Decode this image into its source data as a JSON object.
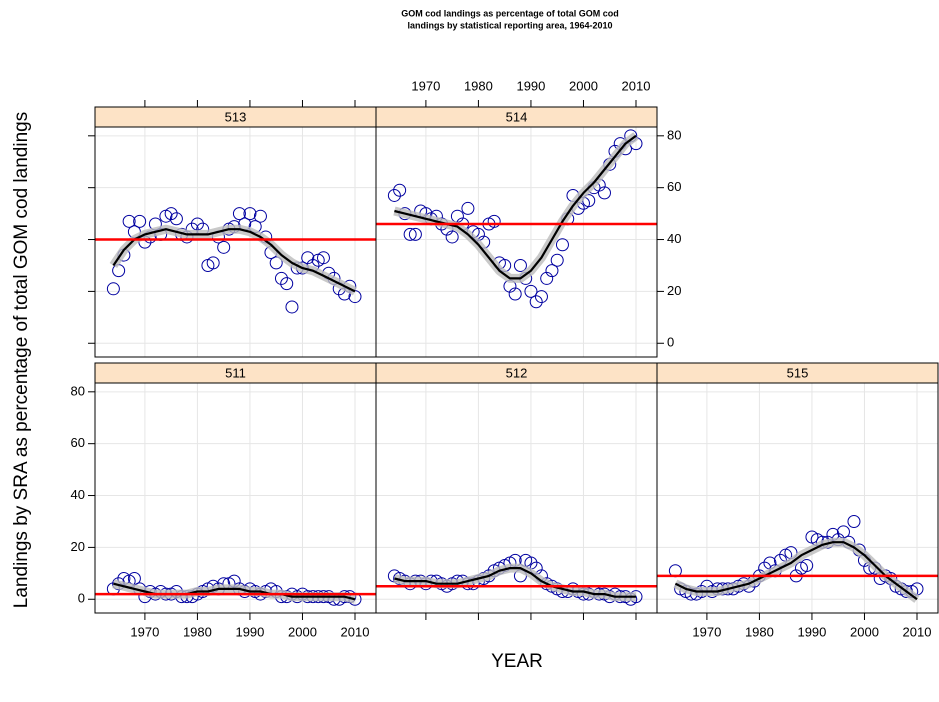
{
  "chart_data": {
    "type": "scatter",
    "title_lines": [
      "GOM cod landings as percentage of total GOM cod",
      "landings by statistical reporting area, 1964-2010"
    ],
    "ylabel": "Landings by SRA as percentage of total GOM cod landings",
    "xlabel": "YEAR",
    "xlim": [
      1960.5,
      2014
    ],
    "ylim": [
      -5.3,
      83.4
    ],
    "xticks": [
      1970,
      1980,
      1990,
      2000,
      2010
    ],
    "yticks": [
      0,
      20,
      40,
      60,
      80
    ],
    "grid": true,
    "point_color": "#0000a0",
    "smooth_color": "#000000",
    "mean_color": "#ff0000",
    "strip_color": "#fde3c6",
    "x": [
      1964,
      1965,
      1966,
      1967,
      1968,
      1969,
      1970,
      1971,
      1972,
      1973,
      1974,
      1975,
      1976,
      1977,
      1978,
      1979,
      1980,
      1981,
      1982,
      1983,
      1984,
      1985,
      1986,
      1987,
      1988,
      1989,
      1990,
      1991,
      1992,
      1993,
      1994,
      1995,
      1996,
      1997,
      1998,
      1999,
      2000,
      2001,
      2002,
      2003,
      2004,
      2005,
      2006,
      2007,
      2008,
      2009,
      2010
    ],
    "smooth_x": [
      1964,
      1966,
      1968,
      1970,
      1972,
      1974,
      1976,
      1978,
      1980,
      1982,
      1984,
      1986,
      1988,
      1990,
      1992,
      1994,
      1996,
      1998,
      2000,
      2002,
      2004,
      2006,
      2008,
      2010
    ],
    "panels": [
      {
        "name": "511",
        "mean": 2,
        "values": [
          4,
          6,
          8,
          7,
          8,
          4,
          1,
          3,
          2,
          3,
          2,
          2,
          3,
          1,
          1,
          1,
          2,
          3,
          4,
          5,
          4,
          6,
          6,
          7,
          4,
          3,
          4,
          3,
          2,
          3,
          4,
          3,
          1,
          1,
          2,
          1,
          2,
          1,
          1,
          1,
          1,
          1,
          0,
          0,
          1,
          1,
          0
        ],
        "smooth": [
          6,
          5,
          4,
          3,
          2,
          2,
          2,
          2,
          3,
          3,
          4,
          4,
          4,
          3,
          3,
          2,
          2,
          1,
          1,
          1,
          1,
          1,
          1,
          0
        ]
      },
      {
        "name": "512",
        "mean": 5,
        "values": [
          9,
          8,
          7,
          6,
          7,
          7,
          6,
          7,
          7,
          6,
          5,
          6,
          7,
          7,
          6,
          6,
          7,
          8,
          9,
          11,
          12,
          13,
          14,
          15,
          9,
          15,
          14,
          12,
          9,
          6,
          5,
          4,
          3,
          3,
          4,
          3,
          2,
          2,
          3,
          2,
          2,
          1,
          2,
          1,
          1,
          0,
          1
        ],
        "smooth": [
          8,
          7,
          7,
          7,
          6,
          6,
          6,
          7,
          8,
          9,
          11,
          12,
          12,
          10,
          7,
          5,
          4,
          3,
          3,
          2,
          2,
          1,
          1,
          1
        ]
      },
      {
        "name": "515",
        "mean": 9,
        "values": [
          11,
          4,
          3,
          2,
          2,
          3,
          5,
          3,
          4,
          4,
          4,
          4,
          5,
          6,
          5,
          7,
          9,
          12,
          14,
          11,
          15,
          17,
          18,
          9,
          12,
          13,
          24,
          23,
          22,
          22,
          25,
          23,
          26,
          22,
          30,
          19,
          15,
          12,
          12,
          8,
          9,
          8,
          5,
          4,
          3,
          3,
          4
        ],
        "smooth": [
          6,
          4,
          3,
          3,
          3,
          4,
          5,
          6,
          8,
          10,
          12,
          14,
          17,
          19,
          21,
          22,
          22,
          20,
          17,
          13,
          9,
          6,
          3,
          0
        ]
      },
      {
        "name": "513",
        "mean": 40,
        "values": [
          21,
          28,
          34,
          47,
          43,
          47,
          39,
          41,
          46,
          42,
          49,
          50,
          48,
          42,
          41,
          44,
          46,
          44,
          30,
          31,
          41,
          37,
          44,
          45,
          50,
          46,
          50,
          45,
          49,
          41,
          35,
          31,
          25,
          23,
          14,
          29,
          29,
          33,
          30,
          32,
          33,
          27,
          25,
          21,
          19,
          22,
          18
        ],
        "smooth": [
          30,
          36,
          40,
          42,
          43,
          44,
          43,
          42,
          42,
          42,
          43,
          44,
          44,
          43,
          41,
          38,
          34,
          31,
          29,
          28,
          26,
          24,
          22,
          20
        ]
      },
      {
        "name": "514",
        "mean": 46,
        "values": [
          57,
          59,
          50,
          42,
          42,
          51,
          50,
          48,
          49,
          46,
          44,
          41,
          49,
          46,
          52,
          43,
          42,
          39,
          46,
          47,
          31,
          30,
          22,
          19,
          30,
          25,
          20,
          16,
          18,
          25,
          28,
          32,
          38,
          48,
          57,
          52,
          54,
          55,
          60,
          61,
          58,
          69,
          74,
          77,
          75,
          80,
          77
        ],
        "smooth": [
          51,
          50,
          49,
          48,
          47,
          46,
          45,
          42,
          38,
          33,
          28,
          25,
          25,
          28,
          33,
          40,
          47,
          53,
          58,
          62,
          67,
          72,
          77,
          80
        ]
      }
    ]
  }
}
